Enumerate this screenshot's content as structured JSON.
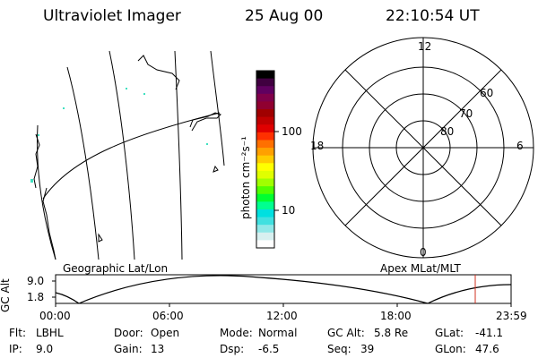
{
  "header": {
    "instrument": "Ultraviolet Imager",
    "date": "25 Aug 00",
    "time": "22:10:54 UT"
  },
  "colorbar": {
    "unit_label": "photon cm⁻²s⁻¹",
    "ticks": [
      {
        "value": 100,
        "label": "100"
      },
      {
        "value": 10,
        "label": "10"
      }
    ],
    "colors": [
      "#000000",
      "#400040",
      "#600060",
      "#80004a",
      "#900030",
      "#a00000",
      "#c00000",
      "#e00000",
      "#ff3000",
      "#ff7000",
      "#ffa000",
      "#ffcc00",
      "#ffff00",
      "#e0ff00",
      "#a0ff00",
      "#50ff00",
      "#00ff30",
      "#00ff90",
      "#00e0e0",
      "#40e0e0",
      "#90e8e8",
      "#d8f0f0",
      "#ffffff"
    ]
  },
  "panels": {
    "geographic_label": "Geographic Lat/Lon",
    "apex_label": "Apex MLat/MLT"
  },
  "polar": {
    "mlt_labels": {
      "top": "12",
      "left": "18",
      "right": "6",
      "bottom": "0"
    },
    "lat_labels": [
      "60",
      "70",
      "80"
    ]
  },
  "timeline": {
    "ylabel": "GC Alt",
    "ytick_labels": [
      "9.0",
      "1.8"
    ],
    "x_labels": [
      "00:00",
      "06:00",
      "12:00",
      "18:00",
      "23:59"
    ],
    "marker_color": "#d03020"
  },
  "info": {
    "flt_label": "Flt:",
    "flt_value": "LBHL",
    "ip_label": "IP:",
    "ip_value": "9.0",
    "door_label": "Door:",
    "door_value": "Open",
    "gain_label": "Gain:",
    "gain_value": "13",
    "mode_label": "Mode:",
    "mode_value": "Normal",
    "dsp_label": "Dsp:",
    "dsp_value": "-6.5",
    "gcalt_label": "GC Alt:",
    "gcalt_value": "5.8 Re",
    "seq_label": "Seq:",
    "seq_value": "39",
    "glat_label": "GLat:",
    "glat_value": "-41.1",
    "glon_label": "GLon:",
    "glon_value": "47.6"
  }
}
